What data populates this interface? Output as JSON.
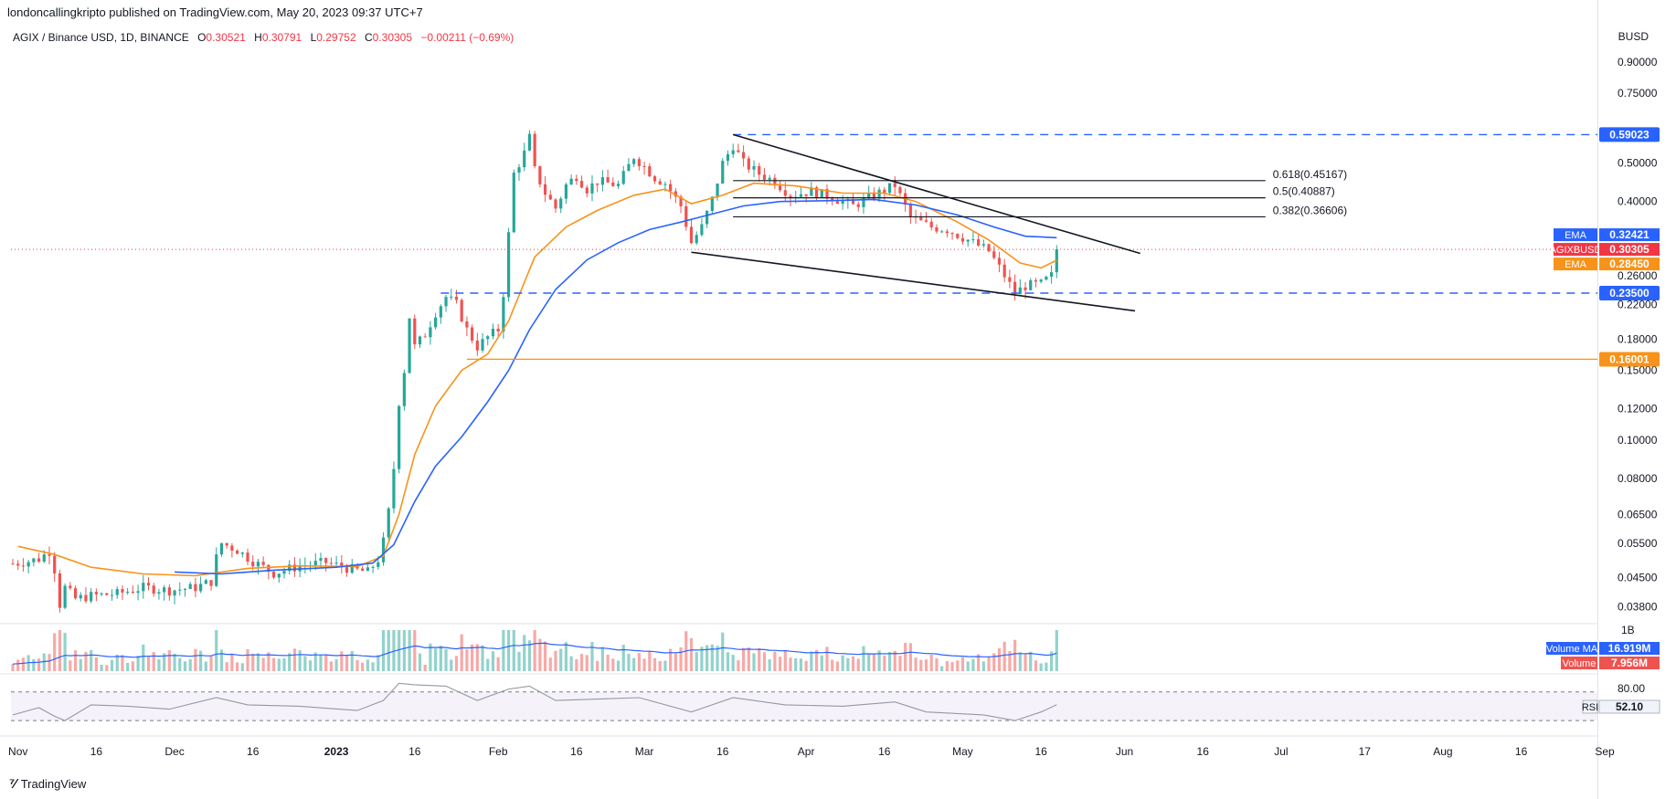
{
  "header": {
    "published": "londoncallingkripto published on TradingView.com, May 20, 2023 09:37 UTC+7"
  },
  "legend": {
    "symbol": "AGIX / Binance USD, 1D, BINANCE",
    "o_label": "O",
    "o": "0.30521",
    "h_label": "H",
    "h": "0.30791",
    "l_label": "L",
    "l": "0.29752",
    "c_label": "C",
    "c": "0.30305",
    "change": "−0.00211 (−0.69%)"
  },
  "currency": "BUSD",
  "footer": {
    "brand": "TradingView"
  },
  "colors": {
    "up": "#26a69a",
    "down": "#ef5350",
    "ema_fast": "#f7931a",
    "ema_slow": "#2962ff",
    "level": "#2962ff",
    "support": "#f7931a",
    "rsi": "#7e57c2",
    "price_line": "#f23645"
  },
  "chart_data": {
    "type": "candlestick",
    "scale": "log",
    "ylim": [
      0.035,
      1.0
    ],
    "price_ticks": [
      "0.90000",
      "0.75000",
      "0.50000",
      "0.40000",
      "0.26000",
      "0.22000",
      "0.18000",
      "0.15000",
      "0.12000",
      "0.10000",
      "0.08000",
      "0.06500",
      "0.05500",
      "0.04500",
      "0.03800"
    ],
    "date_ticks": [
      {
        "label": "Nov",
        "date": "2022-11-01"
      },
      {
        "label": "16",
        "date": "2022-11-16"
      },
      {
        "label": "Dec",
        "date": "2022-12-01"
      },
      {
        "label": "16",
        "date": "2022-12-16"
      },
      {
        "label": "2023",
        "date": "2023-01-01"
      },
      {
        "label": "16",
        "date": "2023-01-16"
      },
      {
        "label": "Feb",
        "date": "2023-02-01"
      },
      {
        "label": "16",
        "date": "2023-02-16"
      },
      {
        "label": "Mar",
        "date": "2023-03-01"
      },
      {
        "label": "16",
        "date": "2023-03-16"
      },
      {
        "label": "Apr",
        "date": "2023-04-01"
      },
      {
        "label": "16",
        "date": "2023-04-16"
      },
      {
        "label": "May",
        "date": "2023-05-01"
      },
      {
        "label": "16",
        "date": "2023-05-16"
      },
      {
        "label": "Jun",
        "date": "2023-06-01"
      },
      {
        "label": "16",
        "date": "2023-06-16"
      },
      {
        "label": "Jul",
        "date": "2023-07-01"
      },
      {
        "label": "17",
        "date": "2023-07-17"
      },
      {
        "label": "Aug",
        "date": "2023-08-01"
      },
      {
        "label": "16",
        "date": "2023-08-16"
      },
      {
        "label": "Sep",
        "date": "2023-09-01"
      }
    ],
    "close_path": [
      [
        "2022-10-31",
        0.0488
      ],
      [
        "2022-11-03",
        0.0495
      ],
      [
        "2022-11-05",
        0.0502
      ],
      [
        "2022-11-07",
        0.0525
      ],
      [
        "2022-11-08",
        0.0472
      ],
      [
        "2022-11-09",
        0.0385
      ],
      [
        "2022-11-10",
        0.0425
      ],
      [
        "2022-11-12",
        0.0398
      ],
      [
        "2022-11-15",
        0.0405
      ],
      [
        "2022-11-20",
        0.041
      ],
      [
        "2022-11-25",
        0.0425
      ],
      [
        "2022-11-30",
        0.0418
      ],
      [
        "2022-12-05",
        0.0425
      ],
      [
        "2022-12-08",
        0.044
      ],
      [
        "2022-12-09",
        0.0505
      ],
      [
        "2022-12-10",
        0.055
      ],
      [
        "2022-12-13",
        0.0528
      ],
      [
        "2022-12-16",
        0.0495
      ],
      [
        "2022-12-20",
        0.0462
      ],
      [
        "2022-12-25",
        0.0482
      ],
      [
        "2022-12-30",
        0.0492
      ],
      [
        "2023-01-04",
        0.0472
      ],
      [
        "2023-01-07",
        0.0465
      ],
      [
        "2023-01-09",
        0.05
      ],
      [
        "2023-01-10",
        0.0555
      ],
      [
        "2023-01-11",
        0.066
      ],
      [
        "2023-01-12",
        0.085
      ],
      [
        "2023-01-13",
        0.125
      ],
      [
        "2023-01-14",
        0.15
      ],
      [
        "2023-01-15",
        0.205
      ],
      [
        "2023-01-16",
        0.172
      ],
      [
        "2023-01-18",
        0.185
      ],
      [
        "2023-01-20",
        0.21
      ],
      [
        "2023-01-22",
        0.23
      ],
      [
        "2023-01-24",
        0.22
      ],
      [
        "2023-01-26",
        0.19
      ],
      [
        "2023-01-28",
        0.172
      ],
      [
        "2023-01-30",
        0.182
      ],
      [
        "2023-02-01",
        0.19
      ],
      [
        "2023-02-02",
        0.235
      ],
      [
        "2023-02-03",
        0.33
      ],
      [
        "2023-02-04",
        0.47
      ],
      [
        "2023-02-06",
        0.53
      ],
      [
        "2023-02-07",
        0.58
      ],
      [
        "2023-02-08",
        0.48
      ],
      [
        "2023-02-10",
        0.42
      ],
      [
        "2023-02-12",
        0.385
      ],
      [
        "2023-02-14",
        0.44
      ],
      [
        "2023-02-16",
        0.465
      ],
      [
        "2023-02-18",
        0.43
      ],
      [
        "2023-02-20",
        0.45
      ],
      [
        "2023-02-24",
        0.44
      ],
      [
        "2023-02-27",
        0.52
      ],
      [
        "2023-03-01",
        0.49
      ],
      [
        "2023-03-03",
        0.46
      ],
      [
        "2023-03-05",
        0.445
      ],
      [
        "2023-03-08",
        0.39
      ],
      [
        "2023-03-10",
        0.315
      ],
      [
        "2023-03-12",
        0.345
      ],
      [
        "2023-03-14",
        0.405
      ],
      [
        "2023-03-16",
        0.5
      ],
      [
        "2023-03-18",
        0.555
      ],
      [
        "2023-03-20",
        0.5
      ],
      [
        "2023-03-23",
        0.47
      ],
      [
        "2023-03-26",
        0.45
      ],
      [
        "2023-03-29",
        0.415
      ],
      [
        "2023-04-02",
        0.425
      ],
      [
        "2023-04-06",
        0.41
      ],
      [
        "2023-04-10",
        0.39
      ],
      [
        "2023-04-14",
        0.415
      ],
      [
        "2023-04-18",
        0.44
      ],
      [
        "2023-04-21",
        0.365
      ],
      [
        "2023-04-25",
        0.345
      ],
      [
        "2023-04-28",
        0.34
      ],
      [
        "2023-05-02",
        0.32
      ],
      [
        "2023-05-06",
        0.3
      ],
      [
        "2023-05-09",
        0.26
      ],
      [
        "2023-05-11",
        0.235
      ],
      [
        "2023-05-13",
        0.245
      ],
      [
        "2023-05-16",
        0.248
      ],
      [
        "2023-05-18",
        0.26
      ],
      [
        "2023-05-19",
        0.303
      ]
    ],
    "ema_fast": [
      [
        "2022-11-01",
        0.054
      ],
      [
        "2022-11-08",
        0.0515
      ],
      [
        "2022-11-15",
        0.0478
      ],
      [
        "2022-11-25",
        0.046
      ],
      [
        "2022-12-05",
        0.0455
      ],
      [
        "2022-12-15",
        0.0475
      ],
      [
        "2022-12-25",
        0.0482
      ],
      [
        "2023-01-05",
        0.048
      ],
      [
        "2023-01-10",
        0.051
      ],
      [
        "2023-01-13",
        0.065
      ],
      [
        "2023-01-16",
        0.092
      ],
      [
        "2023-01-20",
        0.122
      ],
      [
        "2023-01-25",
        0.15
      ],
      [
        "2023-01-30",
        0.165
      ],
      [
        "2023-02-03",
        0.2
      ],
      [
        "2023-02-08",
        0.29
      ],
      [
        "2023-02-14",
        0.345
      ],
      [
        "2023-02-20",
        0.38
      ],
      [
        "2023-02-27",
        0.415
      ],
      [
        "2023-03-05",
        0.43
      ],
      [
        "2023-03-10",
        0.395
      ],
      [
        "2023-03-16",
        0.415
      ],
      [
        "2023-03-22",
        0.445
      ],
      [
        "2023-03-30",
        0.438
      ],
      [
        "2023-04-08",
        0.42
      ],
      [
        "2023-04-16",
        0.42
      ],
      [
        "2023-04-22",
        0.4
      ],
      [
        "2023-04-30",
        0.355
      ],
      [
        "2023-05-06",
        0.32
      ],
      [
        "2023-05-12",
        0.28
      ],
      [
        "2023-05-16",
        0.272
      ],
      [
        "2023-05-19",
        0.2845
      ]
    ],
    "ema_slow": [
      [
        "2022-12-01",
        0.0465
      ],
      [
        "2022-12-10",
        0.046
      ],
      [
        "2022-12-20",
        0.047
      ],
      [
        "2023-01-01",
        0.0478
      ],
      [
        "2023-01-08",
        0.049
      ],
      [
        "2023-01-12",
        0.0545
      ],
      [
        "2023-01-16",
        0.07
      ],
      [
        "2023-01-20",
        0.086
      ],
      [
        "2023-01-25",
        0.102
      ],
      [
        "2023-01-30",
        0.125
      ],
      [
        "2023-02-03",
        0.15
      ],
      [
        "2023-02-07",
        0.19
      ],
      [
        "2023-02-12",
        0.24
      ],
      [
        "2023-02-18",
        0.285
      ],
      [
        "2023-02-24",
        0.315
      ],
      [
        "2023-03-02",
        0.34
      ],
      [
        "2023-03-08",
        0.355
      ],
      [
        "2023-03-14",
        0.372
      ],
      [
        "2023-03-20",
        0.39
      ],
      [
        "2023-03-27",
        0.4
      ],
      [
        "2023-04-05",
        0.402
      ],
      [
        "2023-04-14",
        0.405
      ],
      [
        "2023-04-22",
        0.392
      ],
      [
        "2023-04-30",
        0.37
      ],
      [
        "2023-05-07",
        0.345
      ],
      [
        "2023-05-13",
        0.327
      ],
      [
        "2023-05-19",
        0.3242
      ]
    ],
    "levels": [
      {
        "value": 0.59023,
        "label": "0.59023",
        "from": "2023-03-18",
        "style": "dashed",
        "color": "#2962ff"
      },
      {
        "value": 0.235,
        "label": "0.23500",
        "from": "2023-01-21",
        "style": "dashed",
        "color": "#2962ff"
      },
      {
        "value": 0.16001,
        "label": "0.16001",
        "from": "2023-01-26",
        "style": "solid",
        "color": "#f7931a"
      }
    ],
    "fib": [
      {
        "value": 0.45167,
        "label": "0.618(0.45167)"
      },
      {
        "value": 0.40887,
        "label": "0.5(0.40887)"
      },
      {
        "value": 0.36606,
        "label": "0.382(0.36606)"
      }
    ],
    "fib_range": [
      "2023-03-18",
      "2023-06-28"
    ],
    "trendlines": [
      {
        "from": [
          "2023-03-18",
          0.59023
        ],
        "to": [
          "2023-06-04",
          0.296
        ]
      },
      {
        "from": [
          "2023-03-10",
          0.298
        ],
        "to": [
          "2023-06-03",
          0.212
        ]
      }
    ],
    "axis_labels": [
      {
        "text": "EMA",
        "value": "0.32421",
        "color": "#2962ff",
        "price": 0.32421
      },
      {
        "text": "AGIXBUSD",
        "value": "0.30305",
        "color": "#f23645",
        "price": 0.30305
      },
      {
        "text": "EMA",
        "value": "0.28450",
        "color": "#f7931a",
        "price": 0.2845
      }
    ],
    "last_close": 0.30305,
    "volume": {
      "axis_label": "1B",
      "ma_label": "Volume MA",
      "ma_value": "16.919M",
      "vol_label": "Volume",
      "vol_value": "7.956M"
    },
    "rsi": {
      "label": "RSI",
      "value": "52.10",
      "upper_label": "80.00",
      "upper": 70,
      "lower": 30,
      "path": [
        [
          "2022-10-31",
          38
        ],
        [
          "2022-11-05",
          48
        ],
        [
          "2022-11-08",
          36
        ],
        [
          "2022-11-10",
          30
        ],
        [
          "2022-11-15",
          52
        ],
        [
          "2022-11-22",
          50
        ],
        [
          "2022-11-30",
          46
        ],
        [
          "2022-12-09",
          62
        ],
        [
          "2022-12-15",
          52
        ],
        [
          "2022-12-25",
          50
        ],
        [
          "2023-01-05",
          44
        ],
        [
          "2023-01-10",
          58
        ],
        [
          "2023-01-13",
          82
        ],
        [
          "2023-01-16",
          80
        ],
        [
          "2023-01-22",
          78
        ],
        [
          "2023-01-28",
          58
        ],
        [
          "2023-02-03",
          74
        ],
        [
          "2023-02-07",
          78
        ],
        [
          "2023-02-12",
          58
        ],
        [
          "2023-02-20",
          60
        ],
        [
          "2023-02-28",
          62
        ],
        [
          "2023-03-10",
          42
        ],
        [
          "2023-03-18",
          62
        ],
        [
          "2023-03-28",
          52
        ],
        [
          "2023-04-08",
          50
        ],
        [
          "2023-04-18",
          56
        ],
        [
          "2023-04-24",
          42
        ],
        [
          "2023-05-05",
          38
        ],
        [
          "2023-05-11",
          30
        ],
        [
          "2023-05-16",
          42
        ],
        [
          "2023-05-19",
          52.1
        ]
      ]
    }
  }
}
